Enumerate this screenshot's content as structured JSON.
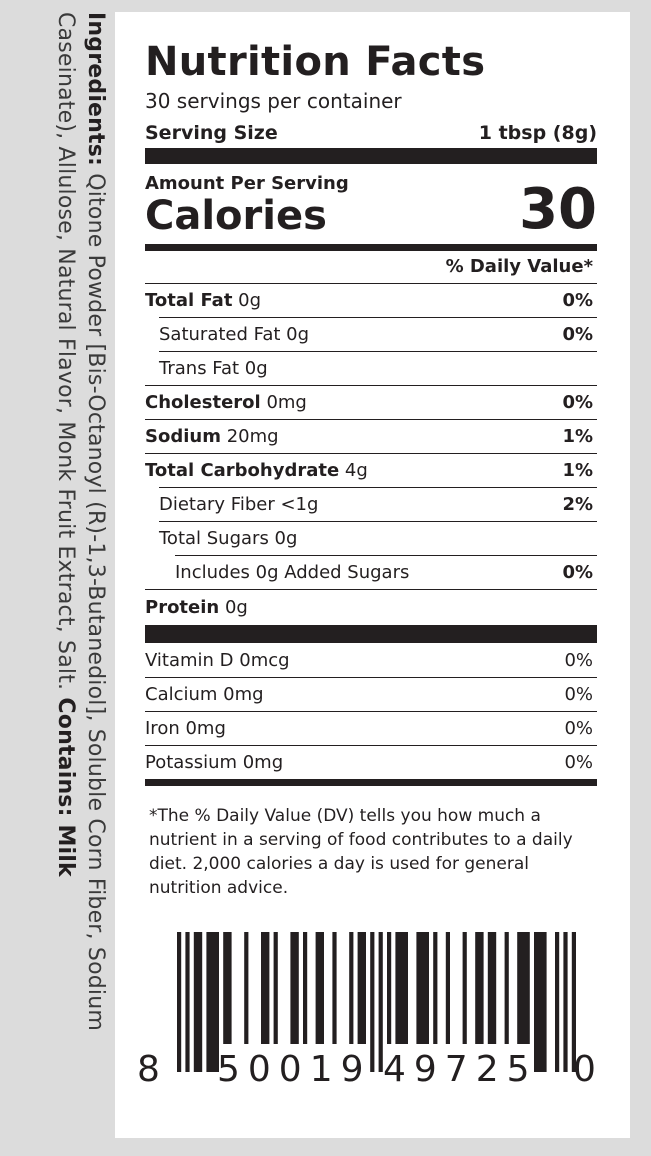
{
  "ingredients": {
    "heading": "Ingredients:",
    "text": " Qitone Powder [Bis-Octanoyl (R)-1,3-Butanediol], Soluble Corn Fiber, Sodium Caseinate), Allulose, Natural Flavor, Monk Fruit Extract, Salt. ",
    "contains_label": "Contains:",
    "contains_value": " Milk"
  },
  "label": {
    "title": "Nutrition Facts",
    "servings": "30 servings per container",
    "serving_size_label": "Serving Size",
    "serving_size_value": "1 tbsp (8g)",
    "amount_per_serving": "Amount Per Serving",
    "calories_label": "Calories",
    "calories_value": "30",
    "dv_header": "% Daily Value*",
    "nutrients": [
      {
        "name": "Total Fat",
        "amount": " 0g",
        "dv": "0%"
      },
      {
        "name": "Saturated Fat 0g",
        "amount": "",
        "dv": "0%"
      },
      {
        "name": "Trans Fat 0g",
        "amount": "",
        "dv": ""
      },
      {
        "name": "Cholesterol",
        "amount": " 0mg",
        "dv": "0%"
      },
      {
        "name": "Sodium",
        "amount": " 20mg",
        "dv": "1%"
      },
      {
        "name": "Total Carbohydrate",
        "amount": " 4g",
        "dv": "1%"
      },
      {
        "name": "Dietary Fiber <1g",
        "amount": "",
        "dv": "2%"
      },
      {
        "name": "Total Sugars 0g",
        "amount": "",
        "dv": ""
      },
      {
        "name": "Includes 0g Added Sugars",
        "amount": "",
        "dv": "0%"
      },
      {
        "name": "Protein",
        "amount": " 0g",
        "dv": ""
      }
    ],
    "vitamins": [
      {
        "name": "Vitamin D 0mcg",
        "dv": "0%"
      },
      {
        "name": "Calcium 0mg",
        "dv": "0%"
      },
      {
        "name": "Iron 0mg",
        "dv": "0%"
      },
      {
        "name": "Potassium 0mg",
        "dv": "0%"
      }
    ],
    "footnote": "*The % Daily Value (DV) tells you how much a nutrient in a serving of food contributes to a daily diet. 2,000 calories a day is used for general nutrition advice."
  },
  "barcode": {
    "first_digit": "8",
    "left_group": "50019",
    "right_group": "49725",
    "last_digit": "0",
    "number": "850019497250"
  }
}
